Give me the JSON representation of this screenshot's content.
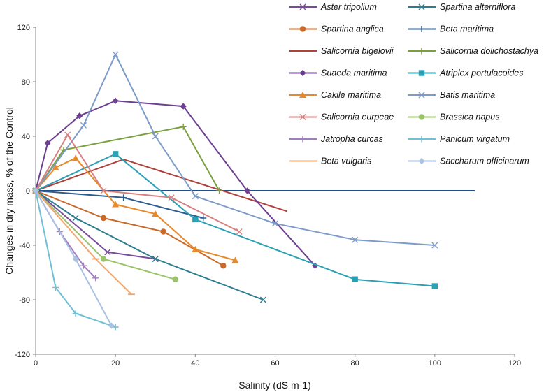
{
  "chart_data": {
    "type": "line",
    "title": "",
    "xlabel": "Salinity (dS m-1)",
    "ylabel": "Changes in dry mass, % of the Control",
    "xlim": [
      0,
      120
    ],
    "ylim": [
      -120,
      120
    ],
    "xticks": [
      0,
      20,
      40,
      60,
      80,
      100,
      120
    ],
    "yticks": [
      -120,
      -80,
      -40,
      0,
      40,
      80,
      120
    ],
    "grid": false,
    "legend_position": "top-right",
    "series": [
      {
        "name": "Aster tripolium",
        "color": "#7a4b9a",
        "marker": "x",
        "points": [
          [
            0,
            0
          ],
          [
            18,
            -45
          ],
          [
            30,
            -50
          ]
        ]
      },
      {
        "name": "Spartina alterniflora",
        "color": "#2c7d8f",
        "marker": "x",
        "points": [
          [
            0,
            0
          ],
          [
            10,
            -20
          ],
          [
            30,
            -50
          ],
          [
            57,
            -80
          ]
        ]
      },
      {
        "name": "Spartina  anglica",
        "color": "#c9692a",
        "marker": "circle",
        "points": [
          [
            0,
            0
          ],
          [
            17,
            -20
          ],
          [
            32,
            -30
          ],
          [
            47,
            -55
          ]
        ]
      },
      {
        "name": "Beta maritima",
        "color": "#2e5c8f",
        "marker": "plus",
        "points": [
          [
            0,
            0
          ],
          [
            22,
            -5
          ],
          [
            42,
            -20
          ]
        ]
      },
      {
        "name": "Salicornia bigelovii",
        "color": "#b0413a",
        "marker": "none",
        "points": [
          [
            0,
            0
          ],
          [
            22,
            23
          ],
          [
            63,
            -15
          ]
        ]
      },
      {
        "name": "Salicornia dolichostachya",
        "color": "#7aa03d",
        "marker": "plus",
        "points": [
          [
            0,
            0
          ],
          [
            7,
            30
          ],
          [
            37,
            47
          ],
          [
            46,
            0
          ]
        ]
      },
      {
        "name": "Suaeda maritima",
        "color": "#6d3f91",
        "marker": "diamond",
        "points": [
          [
            0,
            0
          ],
          [
            3,
            35
          ],
          [
            11,
            55
          ],
          [
            20,
            66
          ],
          [
            37,
            62
          ],
          [
            53,
            0
          ],
          [
            70,
            -55
          ]
        ]
      },
      {
        "name": "Atriplex portulacoides",
        "color": "#2aa0b4",
        "marker": "square",
        "points": [
          [
            0,
            0
          ],
          [
            20,
            27
          ],
          [
            40,
            -21
          ],
          [
            80,
            -65
          ],
          [
            100,
            -70
          ]
        ]
      },
      {
        "name": "Cakile maritima",
        "color": "#e98a2a",
        "marker": "triangle",
        "points": [
          [
            0,
            0
          ],
          [
            5,
            17
          ],
          [
            10,
            24
          ],
          [
            20,
            -10
          ],
          [
            30,
            -17
          ],
          [
            40,
            -43
          ],
          [
            50,
            -51
          ]
        ]
      },
      {
        "name": "Batis maritima",
        "color": "#7d9bc9",
        "marker": "x",
        "points": [
          [
            0,
            0
          ],
          [
            12,
            48
          ],
          [
            20,
            100
          ],
          [
            30,
            40
          ],
          [
            40,
            -4
          ],
          [
            60,
            -24
          ],
          [
            80,
            -36
          ],
          [
            100,
            -40
          ]
        ]
      },
      {
        "name": "Salicornia eurpeae",
        "color": "#d98080",
        "marker": "x",
        "points": [
          [
            0,
            0
          ],
          [
            8,
            41
          ],
          [
            17,
            0
          ],
          [
            34,
            -5
          ],
          [
            51,
            -30
          ]
        ]
      },
      {
        "name": "Brassica napus",
        "color": "#9bc46a",
        "marker": "circle",
        "points": [
          [
            0,
            0
          ],
          [
            17,
            -50
          ],
          [
            35,
            -65
          ]
        ]
      },
      {
        "name": "Jatropha curcas",
        "color": "#a27cc0",
        "marker": "plus",
        "points": [
          [
            0,
            0
          ],
          [
            6,
            -30
          ],
          [
            12,
            -55
          ],
          [
            15,
            -64
          ]
        ]
      },
      {
        "name": "Panicum virgatum",
        "color": "#6fc0d4",
        "marker": "plus",
        "points": [
          [
            0,
            0
          ],
          [
            5,
            -71
          ],
          [
            10,
            -90
          ],
          [
            20,
            -100
          ]
        ]
      },
      {
        "name": "Beta vulgaris",
        "color": "#f2a66e",
        "marker": "dash",
        "points": [
          [
            0,
            0
          ],
          [
            15,
            -50
          ],
          [
            24,
            -76
          ]
        ]
      },
      {
        "name": "Saccharum officinarum",
        "color": "#a9c1e2",
        "marker": "diamond",
        "points": [
          [
            0,
            0
          ],
          [
            10,
            -50
          ],
          [
            19,
            -99
          ]
        ]
      },
      {
        "name": "",
        "color": "#1f4e8c",
        "marker": "none",
        "legend": false,
        "points": [
          [
            0,
            0
          ],
          [
            110,
            0
          ]
        ]
      }
    ]
  }
}
